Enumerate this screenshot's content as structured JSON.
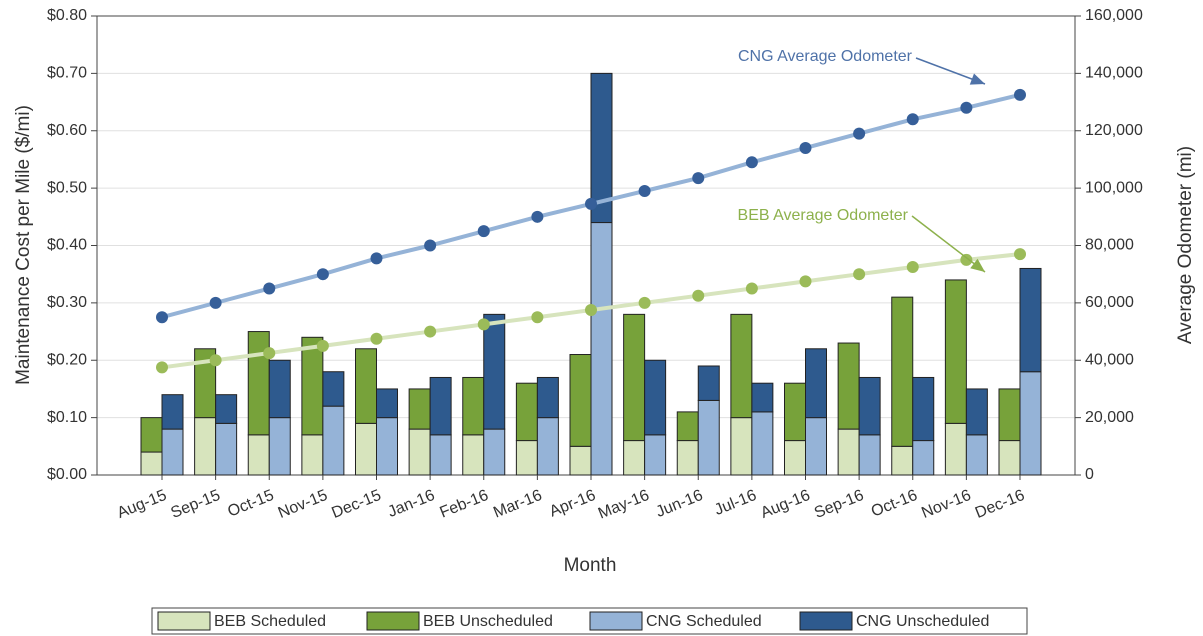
{
  "chart_data": {
    "type": "bar",
    "xlabel": "Month",
    "ylabel": "Maintenance Cost per Mile ($/mi)",
    "y2label": "Average Odometer (mi)",
    "categories": [
      "Aug-15",
      "Sep-15",
      "Oct-15",
      "Nov-15",
      "Dec-15",
      "Jan-16",
      "Feb-16",
      "Mar-16",
      "Apr-16",
      "May-16",
      "Jun-16",
      "Jul-16",
      "Aug-16",
      "Sep-16",
      "Oct-16",
      "Nov-16",
      "Dec-16"
    ],
    "stacks": [
      {
        "series": [
          {
            "name": "BEB Scheduled",
            "color": "#d7e4bd",
            "values": [
              0.04,
              0.1,
              0.07,
              0.07,
              0.09,
              0.08,
              0.07,
              0.06,
              0.05,
              0.06,
              0.06,
              0.1,
              0.06,
              0.08,
              0.05,
              0.09,
              0.06
            ]
          },
          {
            "name": "BEB Unscheduled",
            "color": "#77a23a",
            "values": [
              0.06,
              0.12,
              0.18,
              0.17,
              0.13,
              0.07,
              0.1,
              0.1,
              0.16,
              0.22,
              0.05,
              0.18,
              0.1,
              0.15,
              0.26,
              0.25,
              0.09
            ]
          }
        ]
      },
      {
        "series": [
          {
            "name": "CNG Scheduled",
            "color": "#95b3d7",
            "values": [
              0.08,
              0.09,
              0.1,
              0.12,
              0.1,
              0.07,
              0.08,
              0.1,
              0.44,
              0.07,
              0.13,
              0.11,
              0.1,
              0.07,
              0.06,
              0.07,
              0.18
            ]
          },
          {
            "name": "CNG Unscheduled",
            "color": "#2e5a8e",
            "values": [
              0.06,
              0.05,
              0.1,
              0.06,
              0.05,
              0.1,
              0.2,
              0.07,
              0.26,
              0.13,
              0.06,
              0.05,
              0.12,
              0.1,
              0.11,
              0.08,
              0.18
            ]
          }
        ]
      }
    ],
    "lines": [
      {
        "name": "CNG Average Odometer",
        "axis": "y2",
        "color": "#95b3d7",
        "marker_color": "#365f99",
        "label_color": "#4f72a8",
        "values": [
          55000,
          60000,
          65000,
          70000,
          75500,
          80000,
          85000,
          90000,
          94500,
          99000,
          103500,
          109000,
          114000,
          119000,
          124000,
          128000,
          132500
        ]
      },
      {
        "name": "BEB Average Odometer",
        "axis": "y2",
        "color": "#d7e4bd",
        "marker_color": "#9bbb59",
        "label_color": "#8db14c",
        "values": [
          37500,
          40000,
          42500,
          45000,
          47500,
          50000,
          52500,
          55000,
          57500,
          60000,
          62500,
          65000,
          67500,
          70000,
          72500,
          75000,
          77000
        ]
      }
    ],
    "ylim": [
      0,
      0.8
    ],
    "yticks": [
      {
        "value": 0,
        "label": "$0.00"
      },
      {
        "value": 0.1,
        "label": "$0.10"
      },
      {
        "value": 0.2,
        "label": "$0.20"
      },
      {
        "value": 0.3,
        "label": "$0.30"
      },
      {
        "value": 0.4,
        "label": "$0.40"
      },
      {
        "value": 0.5,
        "label": "$0.50"
      },
      {
        "value": 0.6,
        "label": "$0.60"
      },
      {
        "value": 0.7,
        "label": "$0.70"
      },
      {
        "value": 0.8,
        "label": "$0.80"
      }
    ],
    "y2lim": [
      0,
      160000
    ],
    "y2ticks": [
      0,
      {
        "value": 20000,
        "label": "20,000"
      },
      {
        "value": 40000,
        "label": "40,000"
      },
      {
        "value": 60000,
        "label": "60,000"
      },
      {
        "value": 80000,
        "label": "80,000"
      },
      {
        "value": 100000,
        "label": "100,000"
      },
      {
        "value": 120000,
        "label": "120,000"
      },
      {
        "value": 140000,
        "label": "140,000"
      },
      {
        "value": 160000,
        "label": "160,000"
      }
    ],
    "grid": true
  }
}
